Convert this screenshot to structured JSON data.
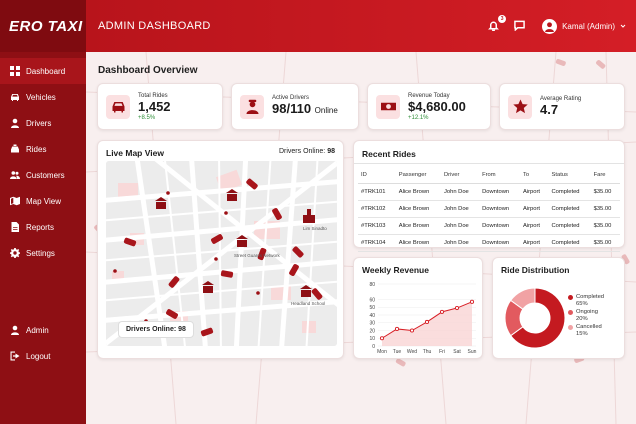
{
  "brand": "ERO TAXI",
  "header": {
    "title": "ADMIN DASHBOARD",
    "notification_count": "3",
    "user_label": "Kamal (Admin)"
  },
  "sidebar": {
    "items": [
      {
        "label": "Dashboard",
        "icon": "grid-icon"
      },
      {
        "label": "Vehicles",
        "icon": "car-icon"
      },
      {
        "label": "Drivers",
        "icon": "user-icon"
      },
      {
        "label": "Rides",
        "icon": "taxi-icon"
      },
      {
        "label": "Customers",
        "icon": "users-icon"
      },
      {
        "label": "Map View",
        "icon": "map-icon"
      },
      {
        "label": "Reports",
        "icon": "file-icon"
      },
      {
        "label": "Settings",
        "icon": "gear-icon"
      }
    ],
    "bottom": [
      {
        "label": "Admin",
        "icon": "user-icon"
      },
      {
        "label": "Logout",
        "icon": "logout-icon"
      }
    ]
  },
  "overview_title": "Dashboard Overview",
  "stats": [
    {
      "label": "Total Rides",
      "value": "1,452",
      "change": "+8.5%"
    },
    {
      "label": "Active Drivers",
      "value": "98/110",
      "suffix": "Online"
    },
    {
      "label": "Revenue Today",
      "value": "$4,680.00",
      "change": "+12.1%"
    },
    {
      "label": "Average Rating",
      "value": "4.7"
    }
  ],
  "map": {
    "title": "Live Map View",
    "drivers_online_label": "Drivers Online:",
    "drivers_online_value": "98",
    "pill_text": "Drivers Online: 98",
    "landmarks": [
      "Street Guards Network",
      "Lim Sinadto",
      "Headland School"
    ]
  },
  "recent_rides": {
    "title": "Recent Rides",
    "columns": [
      "ID",
      "Passenger",
      "Driver",
      "From",
      "To",
      "Status",
      "Fare"
    ],
    "rows": [
      [
        "#TRK101",
        "Alice Brown",
        "John Doe",
        "Downtown",
        "Airport",
        "Completed",
        "$35.00"
      ],
      [
        "#TRK102",
        "Alice Brown",
        "John Doe",
        "Downtown",
        "Airport",
        "Completed",
        "$35.00"
      ],
      [
        "#TRK103",
        "Alice Brown",
        "John Doe",
        "Downtown",
        "Airport",
        "Completed",
        "$35.00"
      ],
      [
        "#TRK104",
        "Alice Brown",
        "John Doe",
        "Downtown",
        "Airport",
        "Completed",
        "$35.00"
      ]
    ]
  },
  "chart_data": [
    {
      "type": "area",
      "title": "Weekly Revenue",
      "categories": [
        "Mon",
        "Tue",
        "Wed",
        "Thu",
        "Fri",
        "Sat",
        "Sun"
      ],
      "values": [
        10,
        22,
        20,
        31,
        44,
        49,
        57
      ],
      "yticks": [
        "0",
        "10",
        "20",
        "30",
        "40",
        "50",
        "60",
        "80"
      ],
      "ylim": [
        0,
        80
      ],
      "color": "#d81f26"
    },
    {
      "type": "pie",
      "title": "Ride Distribution",
      "slices": [
        {
          "label": "Completed",
          "pct_label": "65%",
          "value": 65,
          "color": "#c41a20"
        },
        {
          "label": "Ongoing",
          "pct_label": "20%",
          "value": 20,
          "color": "#e25a5f"
        },
        {
          "label": "Cancelled",
          "pct_label": "15%",
          "value": 15,
          "color": "#f1a2a4"
        }
      ]
    }
  ],
  "colors": {
    "sidebar": "#8e0f14",
    "header": "#c41a20",
    "accent": "#d81f26",
    "positive": "#2f8f39"
  }
}
